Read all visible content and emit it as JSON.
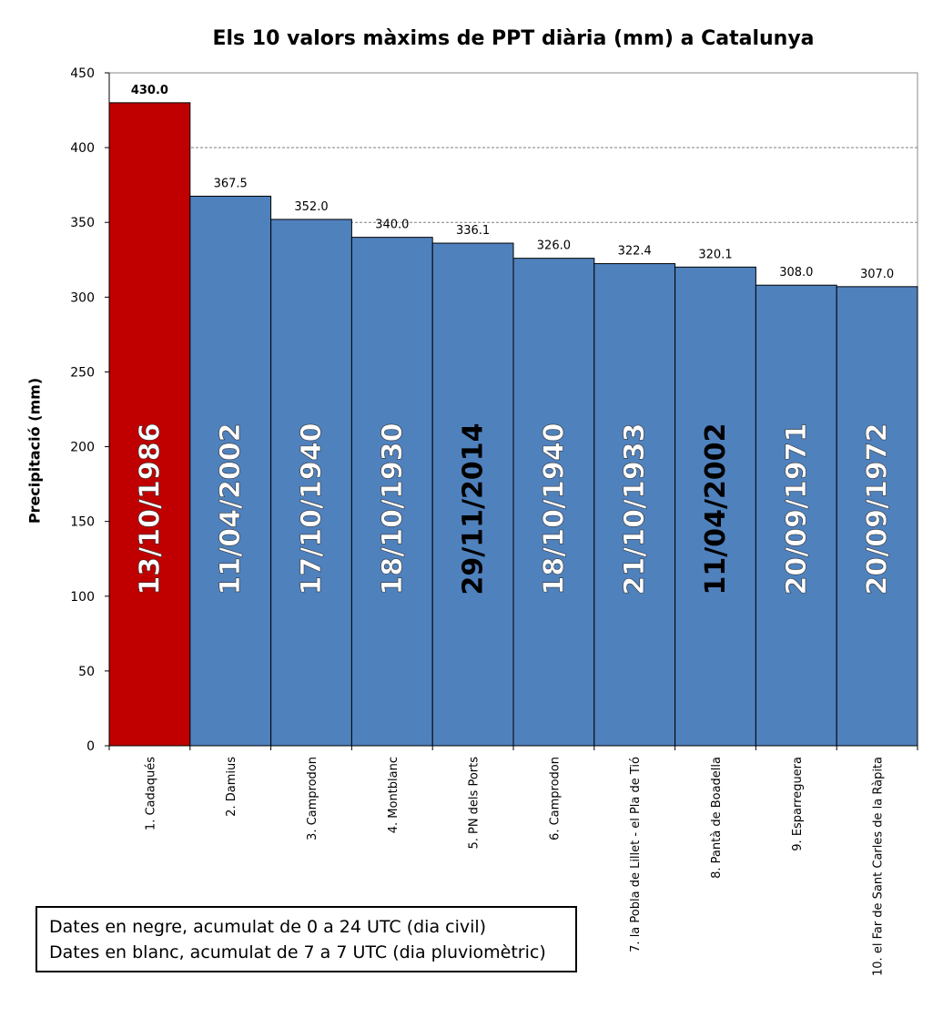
{
  "chart_data": {
    "type": "bar",
    "title": "Els 10 valors màxims de PPT diària (mm) a Catalunya",
    "ylabel": "Precipitació (mm)",
    "xlabel": "",
    "ylim": [
      0,
      450
    ],
    "yticks": [
      "0",
      "50",
      "100",
      "150",
      "200",
      "250",
      "300",
      "350",
      "400",
      "450"
    ],
    "grid": "dashed lines at 350 and 400",
    "categories": [
      "1. Cadaqués",
      "2. Damius",
      "3. Camprodon",
      "4. Montblanc",
      "5. PN dels Ports",
      "6. Camprodon",
      "7. la Pobla de Lillet - el Pla de Tió",
      "8. Pantà de Boadella",
      "9. Esparreguera",
      "10. el Far de Sant Carles de la Ràpita"
    ],
    "values": [
      430.0,
      367.5,
      352.0,
      340.0,
      336.1,
      326.0,
      322.4,
      320.1,
      308.0,
      307.0
    ],
    "value_labels": [
      "430.0",
      "367.5",
      "352.0",
      "340.0",
      "336.1",
      "326.0",
      "322.4",
      "320.1",
      "308.0",
      "307.0"
    ],
    "dates": [
      "13/10/1986",
      "11/04/2002",
      "17/10/1940",
      "18/10/1930",
      "29/11/2014",
      "18/10/1940",
      "21/10/1933",
      "11/04/2002",
      "20/09/1971",
      "20/09/1972"
    ],
    "date_colors": [
      "white",
      "white",
      "white",
      "white",
      "black",
      "white",
      "white",
      "black",
      "white",
      "white"
    ],
    "bar_colors": [
      "#c00000",
      "#4f81bd",
      "#4f81bd",
      "#4f81bd",
      "#4f81bd",
      "#4f81bd",
      "#4f81bd",
      "#4f81bd",
      "#4f81bd",
      "#4f81bd"
    ]
  },
  "legend": {
    "line1": "Dates en negre, acumulat de 0 a 24 UTC (dia civil)",
    "line2": "Dates en blanc, acumulat de 7 a 7 UTC (dia pluviomètric)"
  }
}
